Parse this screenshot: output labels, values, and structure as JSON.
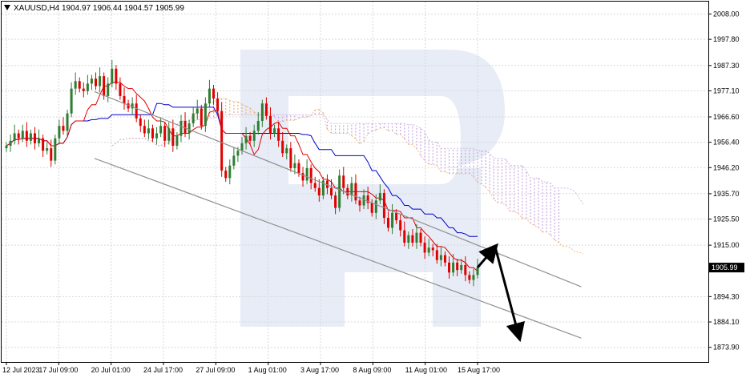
{
  "header": {
    "symbol_timeframe": "XAUUSD,H4",
    "ohlc": "1904.97 1906.44 1904.57 1905.99"
  },
  "colors": {
    "bull": "#2e7d32",
    "bear": "#e00000",
    "tenkan": "#e00000",
    "kijun": "#0000d0",
    "cloud_up": "#f0b070",
    "cloud_down": "#c8a8e0",
    "channel": "#909090",
    "price_tag_bg": "#000000",
    "watermark": "#c9d4ea"
  },
  "chart_data": {
    "type": "line",
    "instrument": "XAUUSD",
    "timeframe": "H4",
    "ylim": [
      1868,
      2013
    ],
    "yticks": [
      "2008.00",
      "1997.80",
      "1987.30",
      "1977.10",
      "1966.60",
      "1956.40",
      "1946.20",
      "1935.70",
      "1925.50",
      "1915.00",
      "1894.30",
      "1884.10",
      "1873.90"
    ],
    "current_price": "1905.99",
    "xticks": [
      "12 Jul 2023",
      "17 Jul 09:00",
      "20 Jul 01:00",
      "24 Jul 17:00",
      "27 Jul 09:00",
      "1 Aug 01:00",
      "3 Aug 17:00",
      "8 Aug 09:00",
      "11 Aug 01:00",
      "15 Aug 17:00"
    ],
    "close": [
      1955,
      1957,
      1960,
      1958,
      1961,
      1957,
      1960,
      1956,
      1958,
      1953,
      1954,
      1949,
      1958,
      1963,
      1961,
      1968,
      1978,
      1981,
      1978,
      1977,
      1980,
      1982,
      1979,
      1983,
      1975,
      1980,
      1986,
      1980,
      1975,
      1972,
      1970,
      1972,
      1966,
      1963,
      1960,
      1962,
      1958,
      1960,
      1963,
      1957,
      1962,
      1955,
      1959,
      1965,
      1960,
      1964,
      1968,
      1970,
      1963,
      1972,
      1978,
      1974,
      1969,
      1945,
      1942,
      1947,
      1951,
      1953,
      1956,
      1959,
      1957,
      1961,
      1965,
      1972,
      1967,
      1960,
      1962,
      1957,
      1952,
      1954,
      1946,
      1948,
      1944,
      1941,
      1946,
      1940,
      1938,
      1935,
      1941,
      1938,
      1935,
      1930,
      1943,
      1938,
      1935,
      1940,
      1933,
      1931,
      1935,
      1932,
      1928,
      1933,
      1936,
      1926,
      1922,
      1928,
      1925,
      1921,
      1916,
      1919,
      1916,
      1920,
      1916,
      1912,
      1914,
      1913,
      1909,
      1911,
      1908,
      1904,
      1908,
      1905,
      1907,
      1903,
      1901,
      1903,
      1906
    ],
    "overlays": [
      "Tenkan-sen",
      "Kijun-sen",
      "Senkou Span A",
      "Senkou Span B"
    ],
    "channels": [
      {
        "points": [
          [
            "12 Jul 2023",
            1963
          ],
          [
            "15 Aug 17:00",
            1893
          ]
        ]
      },
      {
        "points": [
          [
            "12 Jul 2023",
            1991
          ],
          [
            "15 Aug 17:00",
            1915
          ]
        ]
      }
    ],
    "forecast": [
      [
        "15 Aug 17:00",
        1906
      ],
      [
        "15 Aug 17:00",
        1913
      ],
      [
        "15 Aug 17:00",
        1874
      ]
    ]
  }
}
